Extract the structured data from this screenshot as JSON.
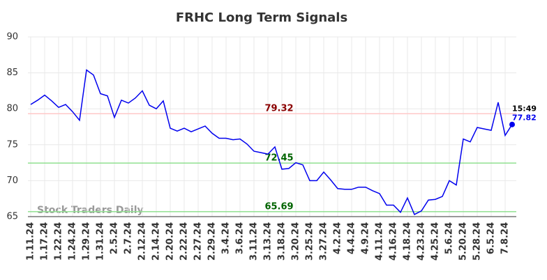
{
  "chart_data": {
    "type": "line",
    "title": "FRHC Long Term Signals",
    "categories": [
      "1.11.24",
      null,
      "1.17.24",
      null,
      "1.22.24",
      null,
      "1.24.24",
      null,
      "1.29.24",
      null,
      "1.31.24",
      null,
      "2.5.24",
      null,
      "2.7.24",
      null,
      "2.12.24",
      null,
      "2.14.24",
      null,
      "2.20.24",
      null,
      "2.22.24",
      null,
      "2.27.24",
      null,
      "2.29.24",
      null,
      "3.4.24",
      null,
      "3.6.24",
      null,
      "3.11.24",
      null,
      "3.13.24",
      null,
      "3.18.24",
      null,
      "3.20.24",
      null,
      "3.25.24",
      null,
      "3.27.24",
      null,
      "4.2.24",
      null,
      "4.4.24",
      null,
      "4.9.24",
      null,
      "4.11.24",
      null,
      "4.16.24",
      null,
      "4.18.24",
      null,
      "4.23.24",
      null,
      "4.25.24",
      null,
      "5.6.24",
      null,
      "5.20.24",
      null,
      "5.28.24",
      null,
      "6.5.24",
      null,
      "7.8.24",
      null
    ],
    "values": [
      80.6,
      81.2,
      81.9,
      81.1,
      80.2,
      80.6,
      79.6,
      78.4,
      85.4,
      84.7,
      82.1,
      81.8,
      78.8,
      81.2,
      80.8,
      81.5,
      82.5,
      80.5,
      80.0,
      81.1,
      77.3,
      76.9,
      77.3,
      76.8,
      77.2,
      77.6,
      76.6,
      75.9,
      75.9,
      75.7,
      75.8,
      75.1,
      74.1,
      73.9,
      73.7,
      74.7,
      71.6,
      71.7,
      72.5,
      72.2,
      70.0,
      70.0,
      71.2,
      70.1,
      68.9,
      68.8,
      68.8,
      69.1,
      69.1,
      68.6,
      68.2,
      66.6,
      66.6,
      65.6,
      67.6,
      65.3,
      65.8,
      67.3,
      67.4,
      67.8,
      70.0,
      69.4,
      75.8,
      75.4,
      77.4,
      77.2,
      77.0,
      80.9,
      76.3,
      77.82
    ],
    "color": "#0000ee",
    "ylim": [
      65,
      90
    ],
    "yticks": [
      65,
      70,
      75,
      80,
      85,
      90
    ],
    "grid": true,
    "hlines": [
      {
        "value": 79.32,
        "color": "#ffc8c8",
        "label_color": "#8b0000"
      },
      {
        "value": 72.45,
        "color": "#90e090",
        "label_color": "#006400"
      },
      {
        "value": 65.69,
        "color": "#90e090",
        "label_color": "#006400"
      }
    ],
    "last_time": "15:49",
    "watermark": "Stock Traders Daily"
  }
}
